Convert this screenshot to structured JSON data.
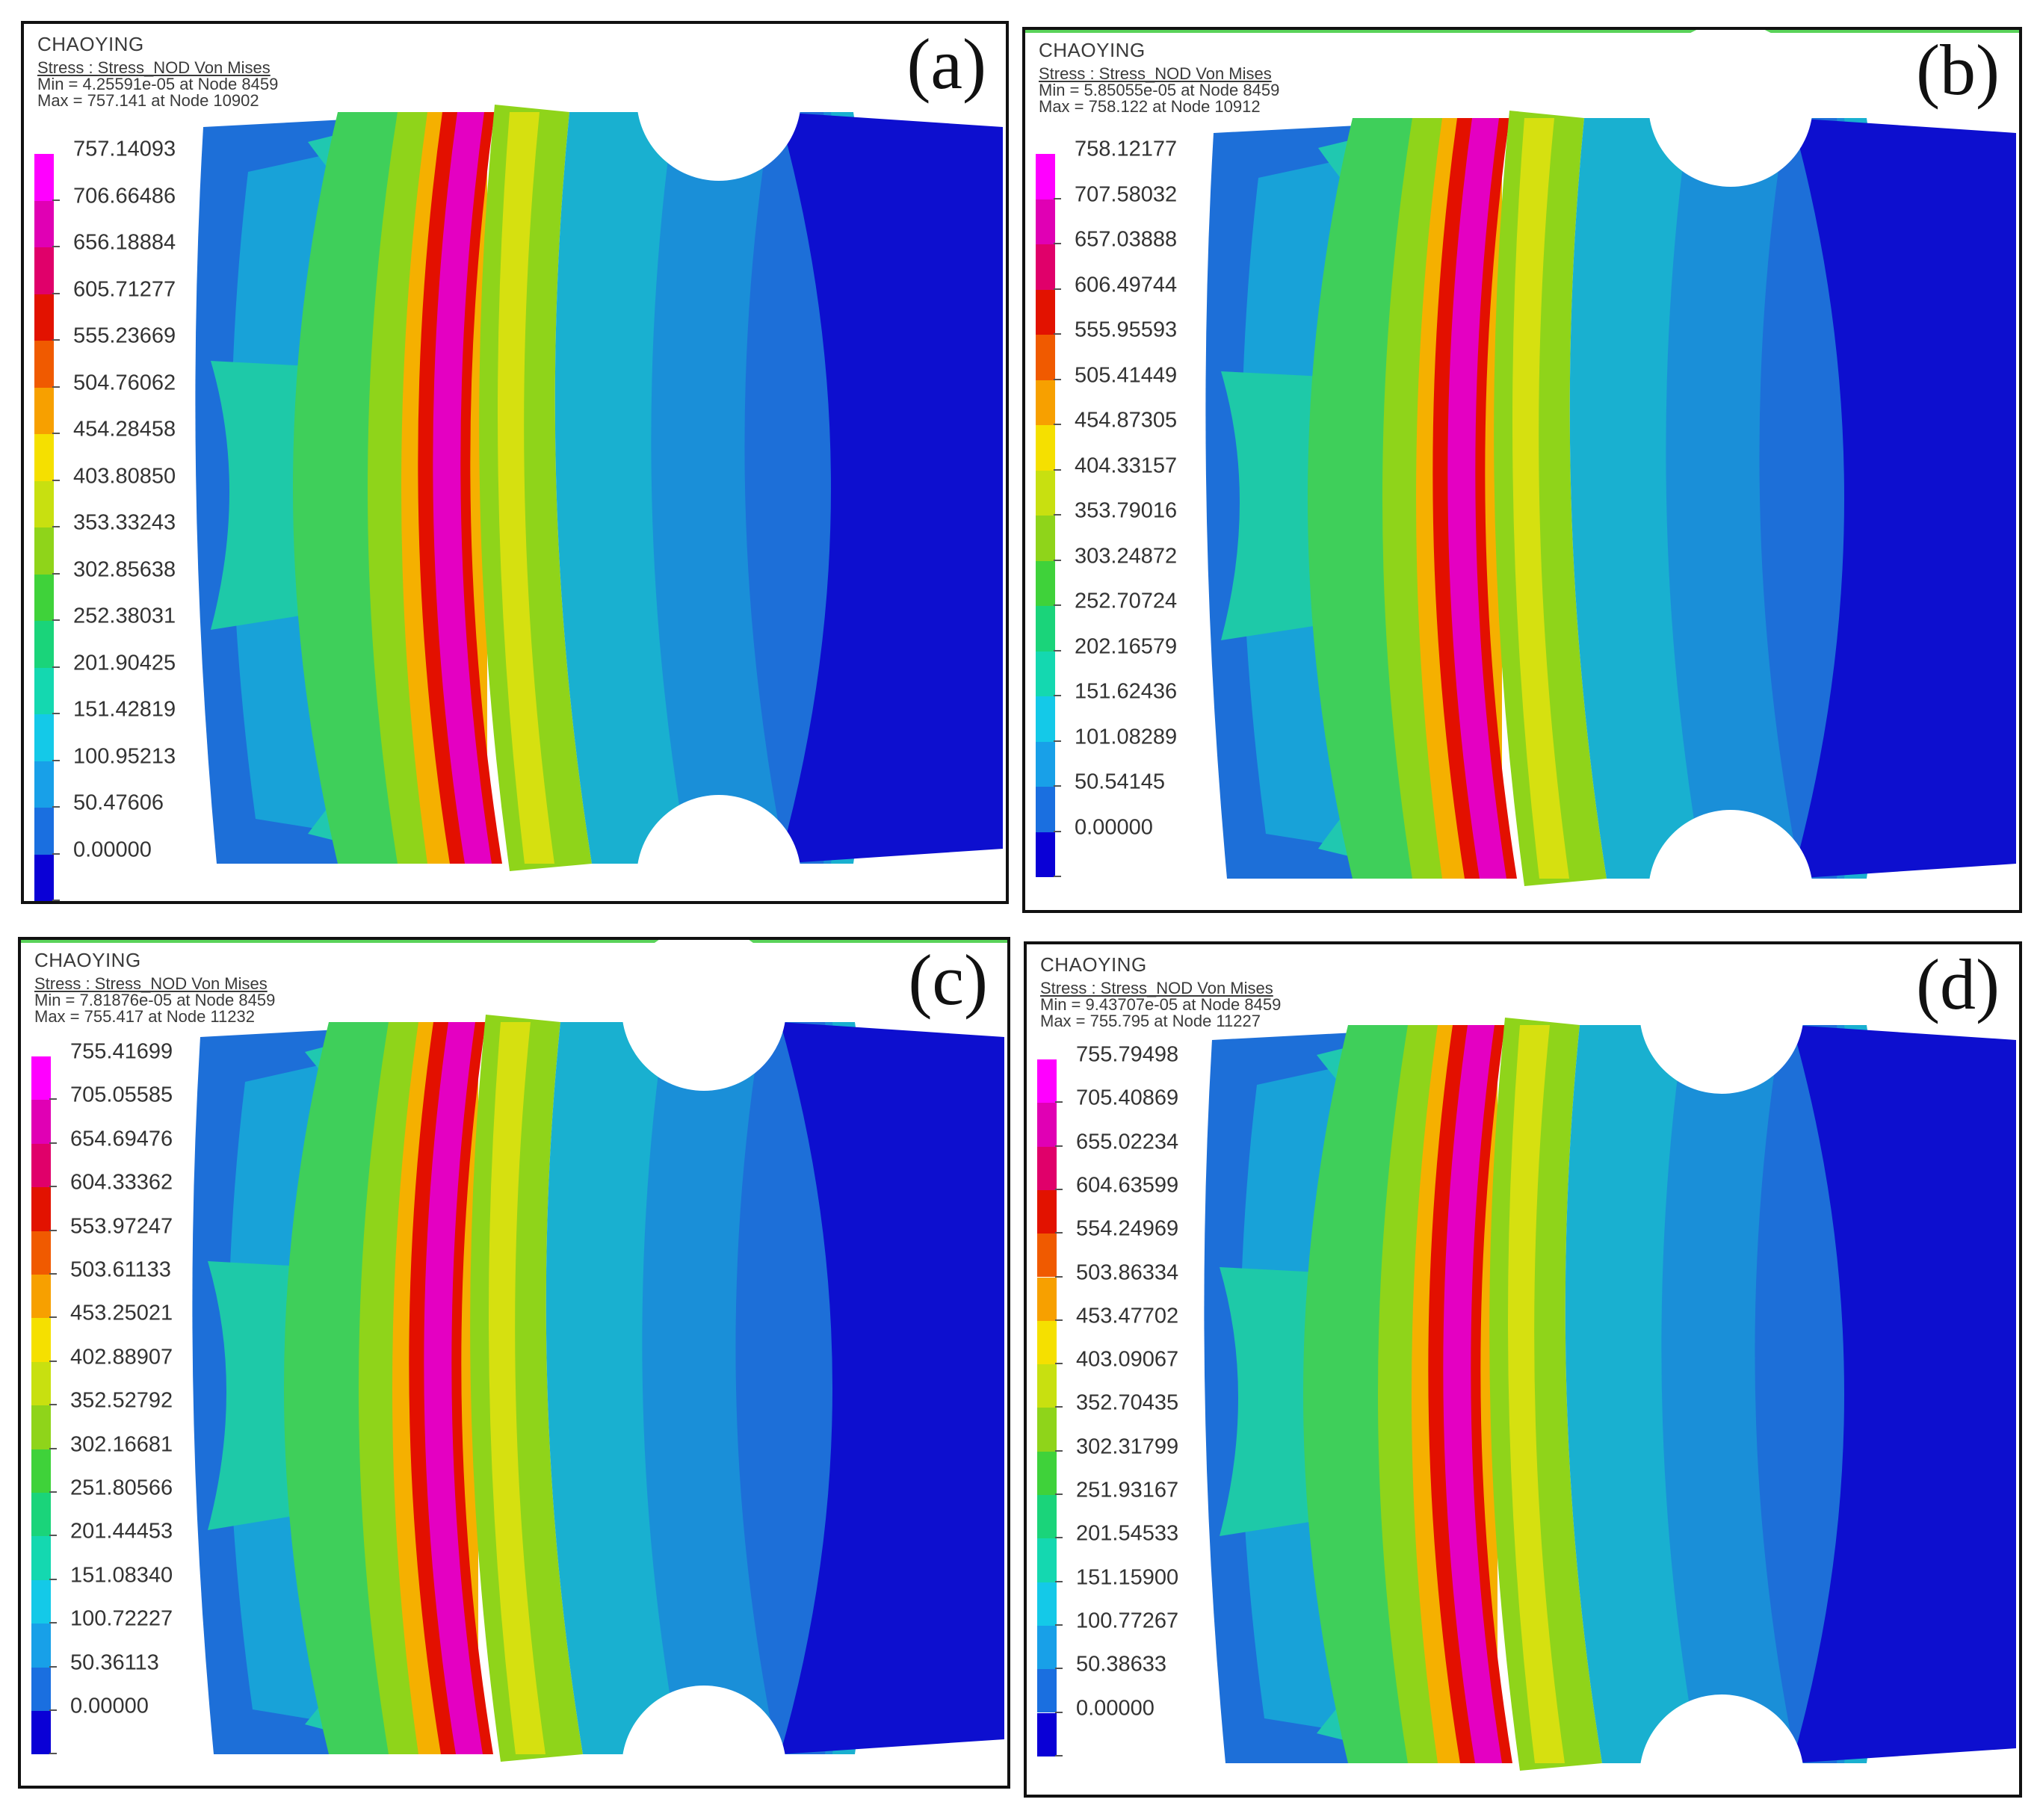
{
  "app": "CHAOYING",
  "colors": {
    "scale": [
      "#0a00d6",
      "#1a6fe0",
      "#18a0e8",
      "#14c9e8",
      "#14d8b0",
      "#1ad47a",
      "#3fd23a",
      "#8fd41a",
      "#d6e010",
      "#f5e600",
      "#f7b800",
      "#f68a00",
      "#f05a00",
      "#e21200",
      "#e0007a",
      "#e800c8",
      "#ff00ff"
    ],
    "body_blue": "#0d0fcf"
  },
  "panels": [
    {
      "tag": "(a)",
      "line1": "Stress : Stress_NOD Von Mises",
      "line2": "Min = 4.25591e-05 at Node 8459",
      "line3": "Max = 757.141 at Node 10902",
      "legend": [
        "757.14093",
        "706.66486",
        "656.18884",
        "605.71277",
        "555.23669",
        "504.76062",
        "454.28458",
        "403.80850",
        "353.33243",
        "302.85638",
        "252.38031",
        "201.90425",
        "151.42819",
        "100.95213",
        "50.47606",
        "0.00000"
      ]
    },
    {
      "tag": "(b)",
      "line1": "Stress : Stress_NOD Von Mises",
      "line2": "Min = 5.85055e-05 at Node 8459",
      "line3": "Max = 758.122 at Node 10912",
      "legend": [
        "758.12177",
        "707.58032",
        "657.03888",
        "606.49744",
        "555.95593",
        "505.41449",
        "454.87305",
        "404.33157",
        "353.79016",
        "303.24872",
        "252.70724",
        "202.16579",
        "151.62436",
        "101.08289",
        "50.54145",
        "0.00000"
      ]
    },
    {
      "tag": "(c)",
      "line1": "Stress : Stress_NOD Von Mises",
      "line2": "Min = 7.81876e-05 at Node 8459",
      "line3": "Max = 755.417 at Node 11232",
      "legend": [
        "755.41699",
        "705.05585",
        "654.69476",
        "604.33362",
        "553.97247",
        "503.61133",
        "453.25021",
        "402.88907",
        "352.52792",
        "302.16681",
        "251.80566",
        "201.44453",
        "151.08340",
        "100.72227",
        "50.36113",
        "0.00000"
      ]
    },
    {
      "tag": "(d)",
      "line1": "Stress : Stress_NOD Von Mises",
      "line2": "Min = 9.43707e-05 at Node 8459",
      "line3": "Max = 755.795 at Node 11227",
      "legend": [
        "755.79498",
        "705.40869",
        "655.02234",
        "604.63599",
        "554.24969",
        "503.86334",
        "453.47702",
        "403.09067",
        "352.70435",
        "302.31799",
        "251.93167",
        "201.54533",
        "151.15900",
        "100.77267",
        "50.38633",
        "0.00000"
      ]
    }
  ]
}
